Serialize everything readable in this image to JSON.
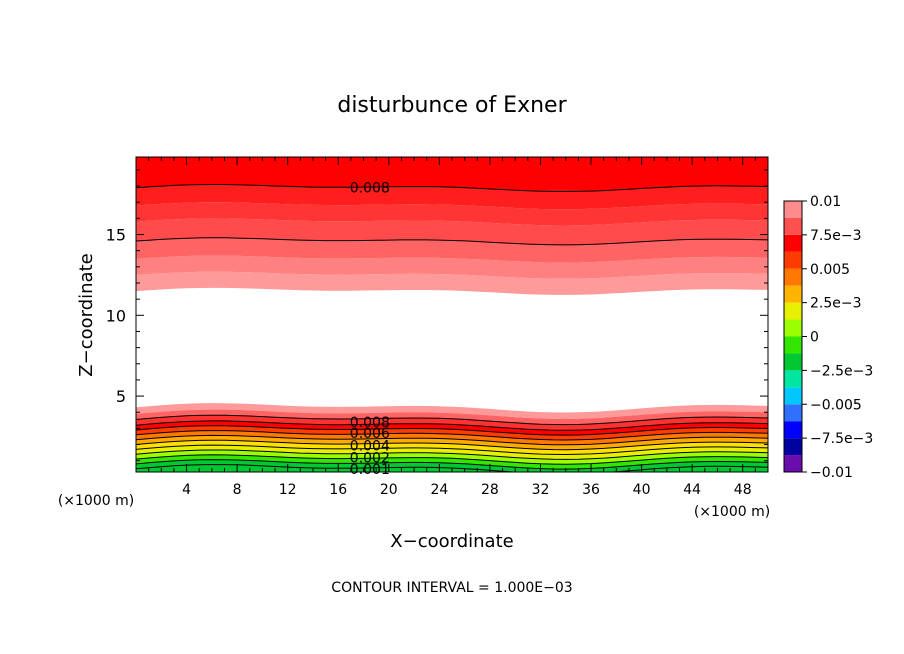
{
  "chart_data": {
    "type": "heatmap",
    "title": "disturbunce of Exner",
    "xlabel": "X−coordinate",
    "ylabel": "Z−coordinate",
    "x_unit_left": "(×1000 m)",
    "x_unit_right": "(×1000 m)",
    "footer": "CONTOUR INTERVAL = 1.000E−03",
    "xlim": [
      0,
      50
    ],
    "ylim": [
      0.3,
      19.8
    ],
    "x_ticks": [
      4,
      8,
      12,
      16,
      20,
      24,
      28,
      32,
      36,
      40,
      44,
      48
    ],
    "y_ticks": [
      5,
      10,
      15
    ],
    "colorbar": {
      "range": [
        -0.01,
        0.01
      ],
      "tick_labels": [
        "0.01",
        "7.5e−3",
        "0.005",
        "2.5e−3",
        "0",
        "−2.5e−3",
        "−0.005",
        "−7.5e−3",
        "−0.01"
      ],
      "tick_values": [
        0.01,
        0.0075,
        0.005,
        0.0025,
        0,
        -0.0025,
        -0.005,
        -0.0075,
        -0.01
      ],
      "colors": [
        "#6a0dad",
        "#0000a0",
        "#0000ff",
        "#3070ff",
        "#00c8ff",
        "#00e6a0",
        "#00c832",
        "#32e600",
        "#9bff00",
        "#e6f000",
        "#ffb400",
        "#ff7800",
        "#ff3c00",
        "#ff0000",
        "#ff5050",
        "#ff8c8c"
      ]
    },
    "upper_band": {
      "z_levels": [
        11.5,
        12.5,
        13.5,
        14.6,
        15.8,
        16.8,
        17.9
      ],
      "colors": [
        "#ff9a9a",
        "#ff8080",
        "#ff6464",
        "#ff4b4b",
        "#ff3434",
        "#ff1e1e",
        "#ff0000"
      ]
    },
    "lower_band": {
      "z_levels": [
        4.3,
        3.9,
        3.55,
        3.2,
        2.9,
        2.6,
        2.3,
        2.0,
        1.7,
        1.4,
        1.1,
        0.8,
        0.5
      ],
      "colors": [
        "#ff9a9a",
        "#ff6464",
        "#ff3232",
        "#ff0000",
        "#ff3c00",
        "#ff7800",
        "#ffaa00",
        "#ffe000",
        "#e6f000",
        "#9bff00",
        "#32e600",
        "#00c832",
        "#00c832"
      ]
    },
    "contour_labels": [
      {
        "text": "0.008",
        "x": 18.5,
        "z": 17.9
      },
      {
        "text": "0.008",
        "x": 18.5,
        "z": 3.4
      },
      {
        "text": "0.006",
        "x": 18.5,
        "z": 2.7
      },
      {
        "text": "0.004",
        "x": 18.5,
        "z": 1.95
      },
      {
        "text": "0.002",
        "x": 18.5,
        "z": 1.2
      },
      {
        "text": "0.001",
        "x": 18.5,
        "z": 0.5
      }
    ]
  }
}
